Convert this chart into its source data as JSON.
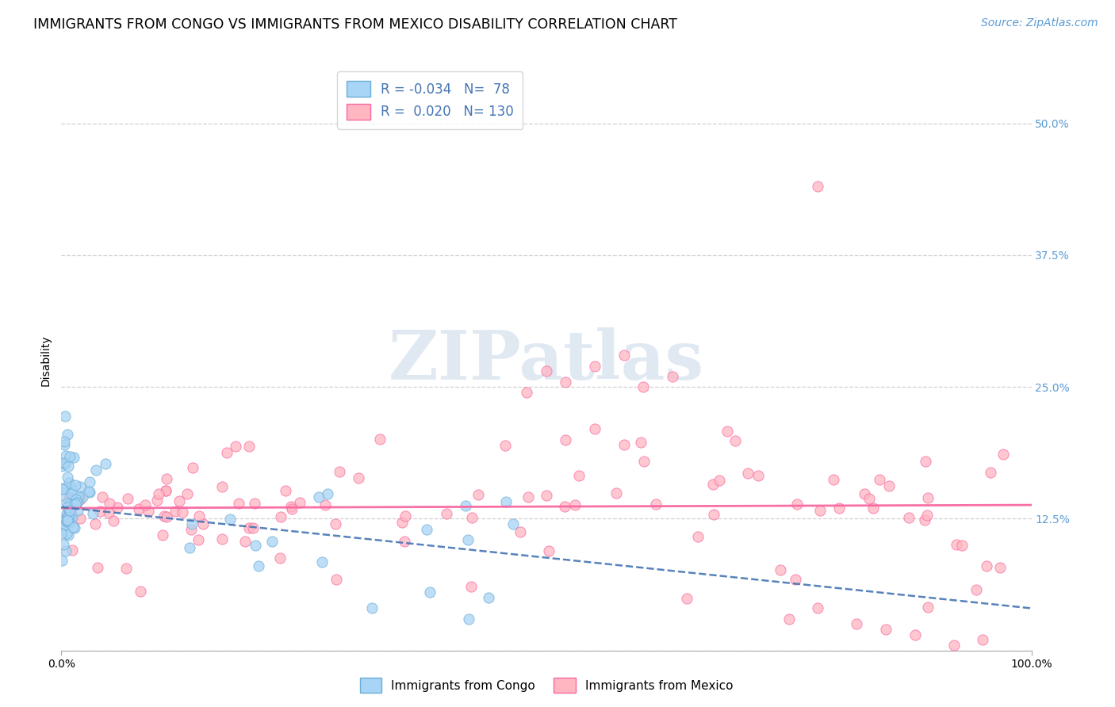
{
  "title": "IMMIGRANTS FROM CONGO VS IMMIGRANTS FROM MEXICO DISABILITY CORRELATION CHART",
  "source": "Source: ZipAtlas.com",
  "ylabel": "Disability",
  "xlim": [
    0.0,
    1.0
  ],
  "ylim": [
    0.0,
    0.55
  ],
  "yticks": [
    0.0,
    0.125,
    0.25,
    0.375,
    0.5
  ],
  "ytick_labels": [
    "",
    "12.5%",
    "25.0%",
    "37.5%",
    "50.0%"
  ],
  "xticks": [
    0.0,
    1.0
  ],
  "xtick_labels": [
    "0.0%",
    "100.0%"
  ],
  "congo_fill": "#a8d4f5",
  "congo_edge": "#6baed6",
  "mexico_fill": "#ffb6c1",
  "mexico_edge": "#f768a1",
  "trend_congo_color": "#4575b4",
  "trend_mexico_color": "#f768a1",
  "tick_color": "#5b9bd5",
  "legend_text_color": "#4575b4",
  "watermark": "ZIPatlas",
  "R_congo": -0.034,
  "N_congo": 78,
  "R_mexico": 0.02,
  "N_mexico": 130,
  "background_color": "#ffffff",
  "grid_color": "#d0d0d0",
  "title_fontsize": 12.5,
  "ylabel_fontsize": 10,
  "tick_fontsize": 10,
  "legend_fontsize": 12,
  "source_fontsize": 10
}
